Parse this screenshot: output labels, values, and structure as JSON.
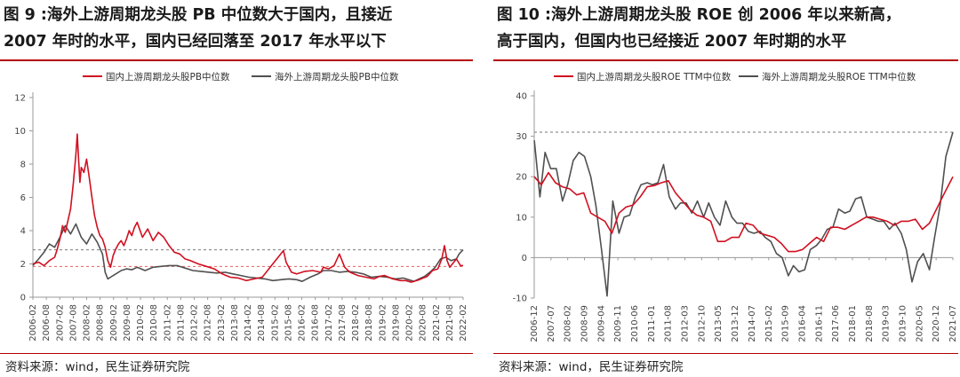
{
  "colors": {
    "red": "#d01020",
    "gray": "#505050",
    "ref_red": "#e06060",
    "ref_gray": "#7a7a7a",
    "axis": "#9a9a9a",
    "title_rule": "#b50000"
  },
  "left": {
    "title_line1": "图 9 :海外上游周期龙头股 PB 中位数大于国内，且接近",
    "title_line2": "2007 年时的水平，国内已经回落至 2017 年水平以下",
    "source": "资料来源：wind，民生证券研究院"
  },
  "right": {
    "title_line1": "图 10 :海外上游周期龙头股 ROE 创 2006 年以来新高，",
    "title_line2": "高于国内，但国内也已经接近 2007 年时期的水平",
    "source": "资料来源：wind，民生证券研究院"
  },
  "chart_data": [
    {
      "id": "pb",
      "type": "line",
      "title": "",
      "xlabel": "",
      "ylabel": "",
      "ylim": [
        0,
        12
      ],
      "yticks": [
        0,
        2,
        4,
        6,
        8,
        10,
        12
      ],
      "x_start": 2006.083,
      "x_end": 2022.25,
      "xtick_labels": [
        "2006-02",
        "2006-08",
        "2007-02",
        "2007-08",
        "2008-02",
        "2008-08",
        "2009-02",
        "2009-08",
        "2010-02",
        "2010-08",
        "2011-02",
        "2011-08",
        "2012-02",
        "2012-08",
        "2013-02",
        "2013-08",
        "2014-02",
        "2014-08",
        "2015-02",
        "2015-08",
        "2016-02",
        "2016-08",
        "2017-02",
        "2017-08",
        "2018-02",
        "2018-08",
        "2019-02",
        "2019-08",
        "2020-02",
        "2020-08",
        "2021-02",
        "2021-08",
        "2022-02"
      ],
      "legend_placement": "top",
      "grid": false,
      "reference_lines": [
        {
          "y": 2.85,
          "color": "ref_gray"
        },
        {
          "y": 1.85,
          "color": "ref_red"
        }
      ],
      "series": [
        {
          "name": "国内上游周期龙头股PB中位数",
          "color": "red",
          "x": [
            2006.08,
            2006.3,
            2006.5,
            2006.7,
            2006.9,
            2007.0,
            2007.1,
            2007.2,
            2007.3,
            2007.4,
            2007.5,
            2007.6,
            2007.7,
            2007.75,
            2007.8,
            2007.85,
            2007.9,
            2008.0,
            2008.1,
            2008.2,
            2008.3,
            2008.4,
            2008.5,
            2008.6,
            2008.7,
            2008.8,
            2008.9,
            2009.0,
            2009.1,
            2009.2,
            2009.3,
            2009.4,
            2009.5,
            2009.6,
            2009.7,
            2009.8,
            2009.9,
            2010.0,
            2010.2,
            2010.4,
            2010.6,
            2010.8,
            2011.0,
            2011.2,
            2011.4,
            2011.6,
            2011.8,
            2012.0,
            2012.3,
            2012.6,
            2012.9,
            2013.2,
            2013.5,
            2013.8,
            2014.1,
            2014.4,
            2014.7,
            2014.9,
            2015.1,
            2015.25,
            2015.4,
            2015.5,
            2015.6,
            2015.8,
            2016.0,
            2016.3,
            2016.6,
            2016.9,
            2017.0,
            2017.2,
            2017.4,
            2017.6,
            2017.8,
            2018.0,
            2018.3,
            2018.6,
            2018.9,
            2019.1,
            2019.3,
            2019.6,
            2019.9,
            2020.1,
            2020.3,
            2020.6,
            2020.9,
            2021.1,
            2021.3,
            2021.45,
            2021.55,
            2021.65,
            2021.75,
            2021.85,
            2022.0,
            2022.15,
            2022.25
          ],
          "y": [
            2.0,
            2.1,
            1.9,
            2.2,
            2.4,
            2.9,
            3.5,
            4.3,
            3.9,
            4.6,
            5.3,
            6.8,
            8.6,
            9.8,
            8.3,
            6.9,
            7.8,
            7.5,
            8.3,
            7.2,
            6.0,
            4.9,
            4.2,
            3.7,
            3.5,
            3.0,
            2.2,
            1.8,
            2.5,
            2.9,
            3.2,
            3.4,
            3.1,
            3.5,
            4.0,
            3.7,
            4.2,
            4.5,
            3.6,
            4.1,
            3.4,
            3.9,
            3.6,
            3.1,
            2.7,
            2.6,
            2.3,
            2.2,
            2.0,
            1.85,
            1.7,
            1.4,
            1.2,
            1.15,
            1.0,
            1.1,
            1.2,
            1.6,
            2.0,
            2.3,
            2.6,
            2.8,
            2.1,
            1.5,
            1.4,
            1.55,
            1.6,
            1.5,
            1.8,
            1.7,
            1.9,
            2.6,
            1.8,
            1.5,
            1.3,
            1.2,
            1.1,
            1.25,
            1.3,
            1.1,
            1.0,
            1.0,
            0.9,
            1.05,
            1.25,
            1.6,
            1.7,
            2.3,
            3.1,
            2.2,
            1.8,
            2.0,
            2.3,
            1.9,
            1.9
          ]
        },
        {
          "name": "海外上游周期龙头股PB中位数",
          "color": "gray",
          "x": [
            2006.08,
            2006.3,
            2006.5,
            2006.7,
            2006.9,
            2007.1,
            2007.3,
            2007.5,
            2007.7,
            2007.9,
            2008.1,
            2008.3,
            2008.5,
            2008.7,
            2008.8,
            2008.9,
            2009.0,
            2009.2,
            2009.4,
            2009.6,
            2009.8,
            2010.0,
            2010.3,
            2010.6,
            2010.9,
            2011.2,
            2011.5,
            2011.8,
            2012.1,
            2012.4,
            2012.7,
            2013.0,
            2013.3,
            2013.6,
            2013.9,
            2014.2,
            2014.5,
            2014.8,
            2015.1,
            2015.4,
            2015.7,
            2016.0,
            2016.2,
            2016.5,
            2016.8,
            2017.0,
            2017.3,
            2017.6,
            2017.9,
            2018.2,
            2018.5,
            2018.8,
            2019.1,
            2019.4,
            2019.7,
            2020.0,
            2020.2,
            2020.4,
            2020.6,
            2020.8,
            2021.0,
            2021.2,
            2021.4,
            2021.6,
            2021.8,
            2022.0,
            2022.1,
            2022.25
          ],
          "y": [
            1.9,
            2.3,
            2.7,
            3.2,
            3.0,
            3.6,
            4.3,
            3.8,
            4.4,
            3.6,
            3.2,
            3.8,
            3.3,
            2.6,
            1.5,
            1.1,
            1.2,
            1.4,
            1.6,
            1.7,
            1.65,
            1.8,
            1.6,
            1.8,
            1.85,
            1.9,
            1.9,
            1.75,
            1.6,
            1.55,
            1.5,
            1.45,
            1.5,
            1.4,
            1.3,
            1.2,
            1.15,
            1.1,
            1.0,
            1.05,
            1.1,
            1.05,
            0.95,
            1.2,
            1.4,
            1.6,
            1.6,
            1.5,
            1.55,
            1.5,
            1.4,
            1.2,
            1.25,
            1.2,
            1.1,
            1.15,
            1.05,
            0.95,
            1.1,
            1.25,
            1.5,
            1.8,
            2.3,
            2.4,
            2.2,
            2.3,
            2.6,
            2.85
          ]
        }
      ]
    },
    {
      "id": "roe",
      "type": "line",
      "title": "",
      "xlabel": "",
      "ylabel": "",
      "ylim": [
        -10,
        40
      ],
      "yticks": [
        -10,
        0,
        10,
        20,
        30,
        40
      ],
      "x_start": 2006.917,
      "x_end": 2021.75,
      "xtick_labels": [
        "2006-12",
        "2007-07",
        "2008-02",
        "2008-09",
        "2009-04",
        "2009-11",
        "2010-06",
        "2011-01",
        "2011-08",
        "2012-03",
        "2012-10",
        "2013-05",
        "2013-12",
        "2014-07",
        "2015-02",
        "2015-09",
        "2016-04",
        "2016-11",
        "2017-06",
        "2018-01",
        "2018-08",
        "2019-03",
        "2019-10",
        "2020-05",
        "2020-12",
        "2021-07"
      ],
      "legend_placement": "top",
      "grid": false,
      "reference_lines": [
        {
          "y": 31,
          "color": "ref_gray"
        }
      ],
      "series": [
        {
          "name": "国内上游周期龙头股ROE TTM中位数",
          "color": "red",
          "x": [
            2006.92,
            2007.17,
            2007.42,
            2007.67,
            2007.92,
            2008.17,
            2008.42,
            2008.67,
            2008.92,
            2009.17,
            2009.42,
            2009.67,
            2009.92,
            2010.17,
            2010.42,
            2010.67,
            2010.92,
            2011.17,
            2011.42,
            2011.67,
            2011.92,
            2012.17,
            2012.42,
            2012.67,
            2012.92,
            2013.17,
            2013.42,
            2013.67,
            2013.92,
            2014.17,
            2014.42,
            2014.67,
            2014.92,
            2015.17,
            2015.42,
            2015.67,
            2015.92,
            2016.17,
            2016.42,
            2016.67,
            2016.92,
            2017.17,
            2017.42,
            2017.67,
            2017.92,
            2018.17,
            2018.42,
            2018.67,
            2018.92,
            2019.17,
            2019.42,
            2019.67,
            2019.92,
            2020.17,
            2020.42,
            2020.67,
            2020.92,
            2021.17,
            2021.42,
            2021.75
          ],
          "y": [
            20,
            18,
            21,
            18.5,
            17.5,
            17,
            15.5,
            16,
            11,
            10,
            9,
            6,
            11,
            12.5,
            13,
            15,
            17.5,
            17.8,
            18.5,
            19,
            16,
            14,
            12,
            10.5,
            10,
            9,
            4,
            4,
            5,
            5,
            8.5,
            8,
            6,
            5.5,
            5,
            3.5,
            1.5,
            1.5,
            2,
            3.5,
            5,
            4,
            7.5,
            7.5,
            7,
            8,
            9,
            10,
            10,
            9.5,
            9,
            8,
            9,
            9,
            9.5,
            7,
            8.5,
            12,
            15.5,
            20
          ]
        },
        {
          "name": "海外上游周期龙头股ROE TTM中位数",
          "color": "gray",
          "x": [
            2006.92,
            2007.12,
            2007.3,
            2007.5,
            2007.7,
            2007.92,
            2008.1,
            2008.3,
            2008.5,
            2008.7,
            2008.92,
            2009.1,
            2009.3,
            2009.5,
            2009.7,
            2009.92,
            2010.1,
            2010.3,
            2010.5,
            2010.7,
            2010.92,
            2011.1,
            2011.3,
            2011.5,
            2011.7,
            2011.92,
            2012.1,
            2012.3,
            2012.5,
            2012.7,
            2012.92,
            2013.1,
            2013.3,
            2013.5,
            2013.7,
            2013.92,
            2014.1,
            2014.3,
            2014.5,
            2014.7,
            2014.92,
            2015.1,
            2015.3,
            2015.5,
            2015.7,
            2015.92,
            2016.1,
            2016.3,
            2016.5,
            2016.7,
            2016.92,
            2017.1,
            2017.3,
            2017.5,
            2017.7,
            2017.92,
            2018.1,
            2018.3,
            2018.5,
            2018.7,
            2018.92,
            2019.1,
            2019.3,
            2019.5,
            2019.7,
            2019.92,
            2020.1,
            2020.3,
            2020.5,
            2020.7,
            2020.92,
            2021.1,
            2021.3,
            2021.5,
            2021.75
          ],
          "y": [
            29,
            15,
            26,
            22,
            22,
            14,
            18,
            24,
            26,
            25,
            20,
            13,
            2,
            -9.5,
            14,
            6,
            10,
            10.5,
            15,
            18,
            18.5,
            18,
            18.5,
            23,
            15,
            12,
            13.5,
            13.5,
            11,
            14,
            10,
            13.5,
            10,
            8,
            14,
            10,
            8.5,
            8.5,
            6.5,
            6,
            6.5,
            5,
            4,
            1,
            0,
            -4.5,
            -2,
            -3.5,
            -3,
            2,
            3,
            4.5,
            7,
            7.5,
            12,
            11,
            11.5,
            14.5,
            15,
            10,
            9.5,
            9,
            9,
            7,
            8.5,
            6,
            2,
            -6,
            -1,
            1,
            -3,
            5,
            13,
            25,
            31
          ]
        }
      ]
    }
  ]
}
